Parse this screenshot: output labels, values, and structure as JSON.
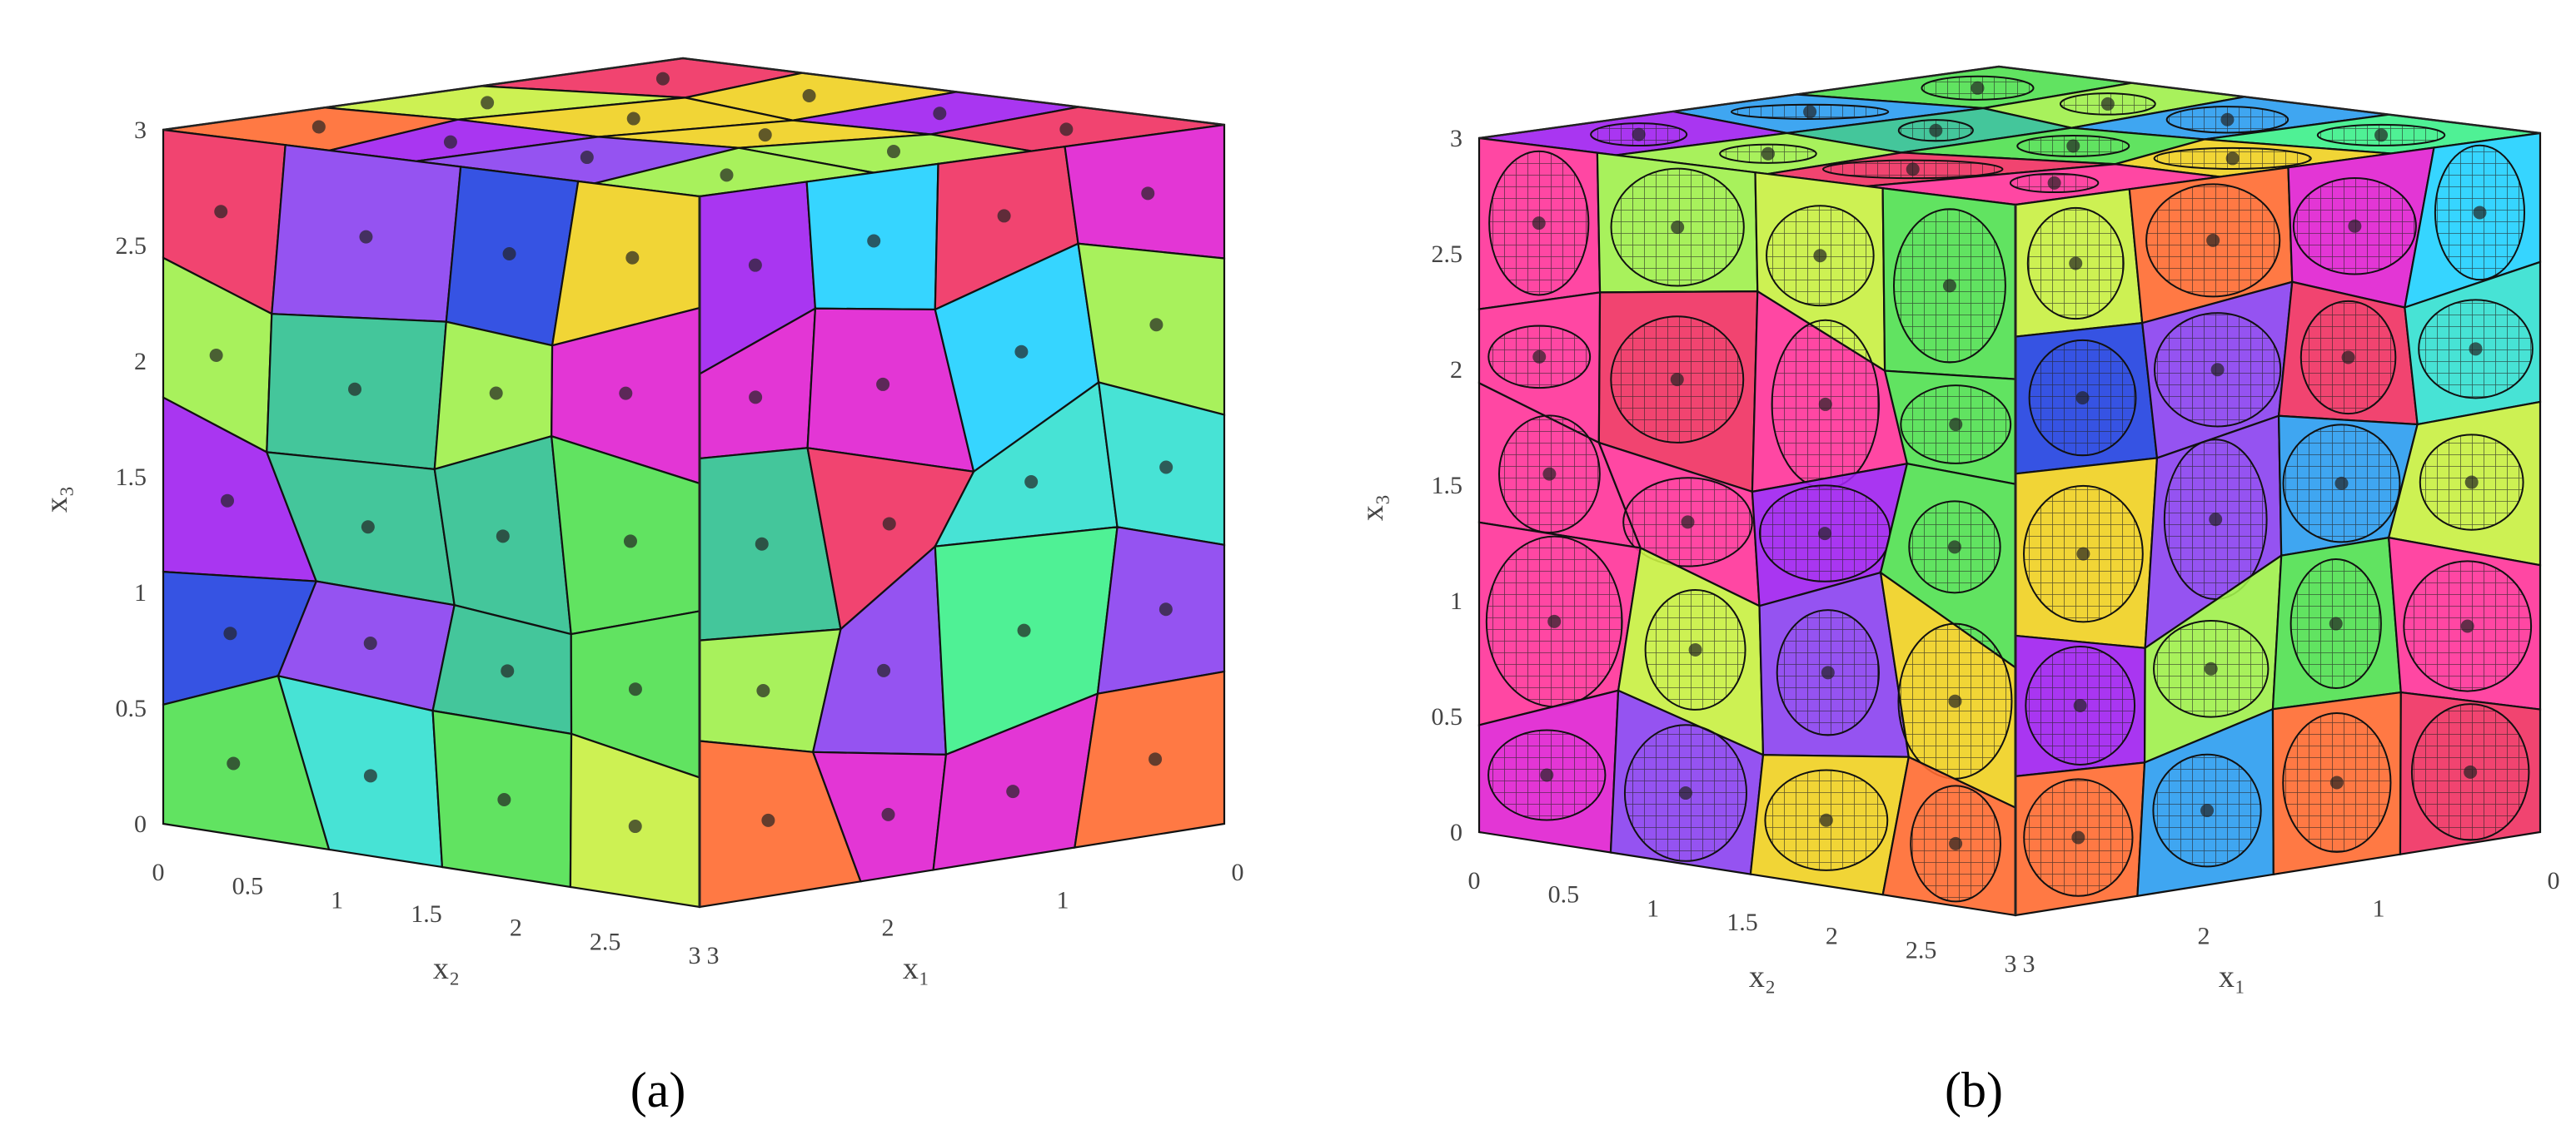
{
  "panels": [
    {
      "label": "(a)",
      "axes": {
        "x3_label": "x₃",
        "x2_label": "x₂",
        "x1_label": "x₁",
        "x3_ticks": [
          0,
          0.5,
          1,
          1.5,
          2,
          2.5,
          3
        ],
        "x2_ticks": [
          0,
          0.5,
          1,
          1.5,
          2,
          2.5,
          3
        ],
        "x1_ticks": [
          3,
          2,
          1,
          0
        ]
      }
    },
    {
      "label": "(b)",
      "axes": {
        "x3_label": "x₃",
        "x2_label": "x₂",
        "x1_label": "x₁",
        "x3_ticks": [
          0,
          0.5,
          1,
          1.5,
          2,
          2.5,
          3
        ],
        "x2_ticks": [
          0,
          0.5,
          1,
          1.5,
          2,
          2.5,
          3
        ],
        "x1_ticks": [
          3,
          2,
          1,
          0
        ]
      }
    }
  ]
}
